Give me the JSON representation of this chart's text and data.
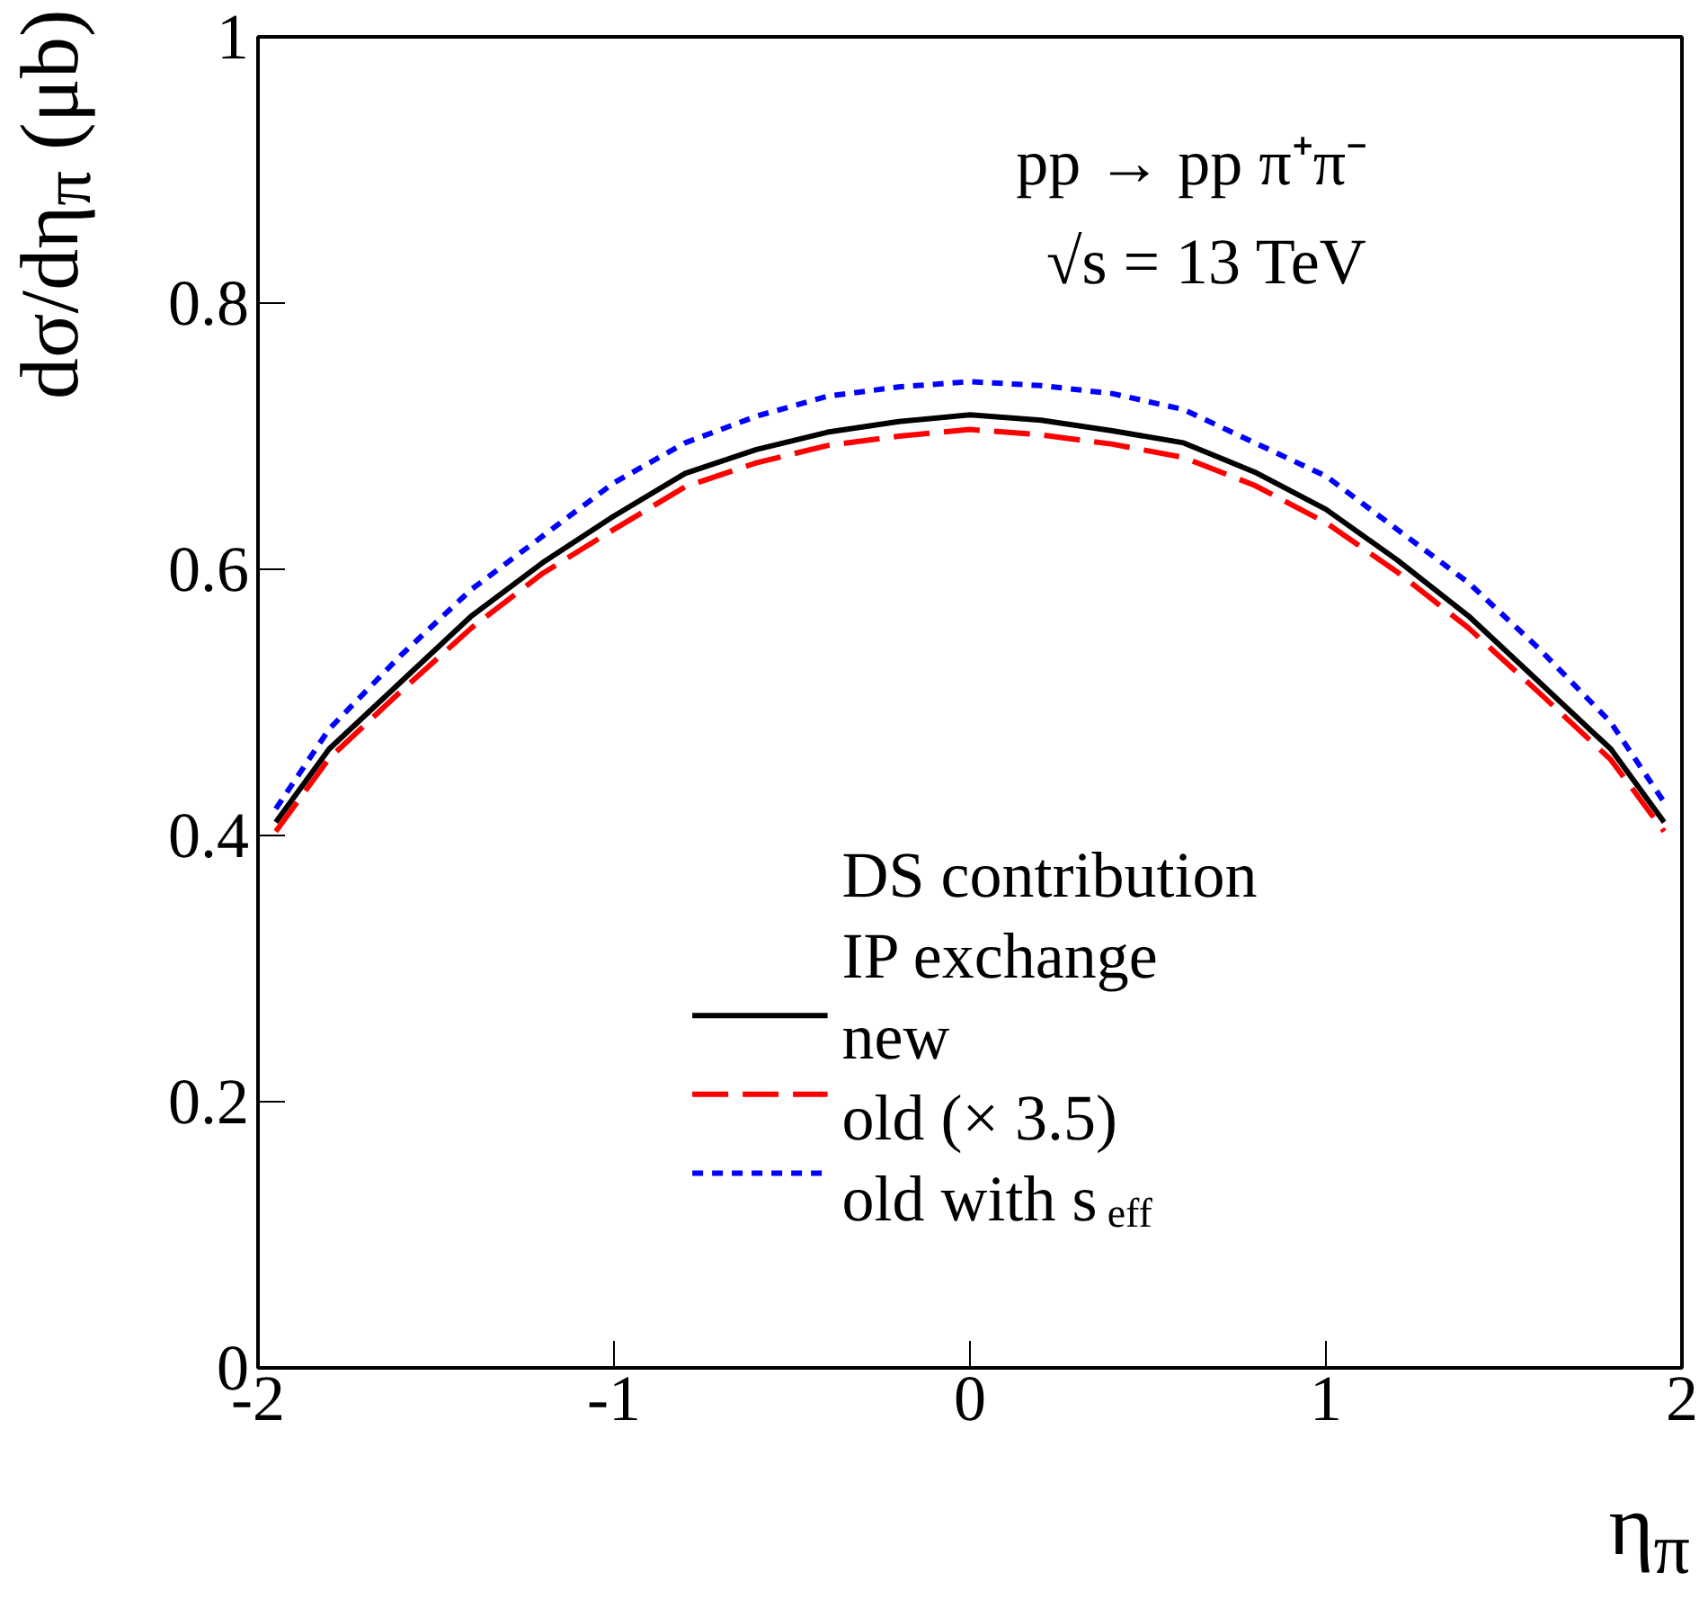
{
  "chart_data": {
    "type": "line",
    "xlabel": "η$_{π}$",
    "ylabel": "dσ/dη$_{π}$ (μb)",
    "legend_title": "DS contribution\nIP exchange",
    "annotations": [
      "pp → pp π⁺π⁻",
      "√s = 13 TeV"
    ],
    "x": [
      -1.95,
      -1.8,
      -1.6,
      -1.4,
      -1.2,
      -1.0,
      -0.8,
      -0.6,
      -0.4,
      -0.2,
      0.0,
      0.2,
      0.4,
      0.6,
      0.8,
      1.0,
      1.2,
      1.4,
      1.6,
      1.8,
      1.95
    ],
    "series": [
      {
        "name": "new",
        "color": "#000000",
        "line_style": "solid",
        "values": [
          0.41,
          0.465,
          0.515,
          0.565,
          0.605,
          0.64,
          0.672,
          0.69,
          0.703,
          0.711,
          0.716,
          0.712,
          0.704,
          0.695,
          0.673,
          0.645,
          0.607,
          0.565,
          0.515,
          0.465,
          0.41
        ]
      },
      {
        "name": "old (× 3.5)",
        "color": "#ff0000",
        "line_style": "dashed",
        "values": [
          0.403,
          0.458,
          0.508,
          0.556,
          0.597,
          0.63,
          0.662,
          0.68,
          0.693,
          0.7,
          0.705,
          0.701,
          0.694,
          0.684,
          0.663,
          0.635,
          0.598,
          0.556,
          0.507,
          0.457,
          0.403
        ]
      },
      {
        "name": "old with s$_{eff}$",
        "color": "#0000ff",
        "line_style": "dotted",
        "values": [
          0.42,
          0.48,
          0.535,
          0.585,
          0.625,
          0.665,
          0.695,
          0.715,
          0.73,
          0.737,
          0.741,
          0.738,
          0.732,
          0.72,
          0.695,
          0.67,
          0.63,
          0.59,
          0.54,
          0.485,
          0.425
        ]
      }
    ],
    "xlim": [
      -2,
      2
    ],
    "ylim": [
      0,
      1
    ],
    "xticks": [
      -2,
      -1,
      0,
      1,
      2
    ],
    "yticks": [
      {
        "value": 0,
        "label": "0"
      },
      0.2,
      0.4,
      0.6,
      0.8,
      {
        "value": 1,
        "label": "1"
      }
    ],
    "grid": false,
    "legend": "bottom right",
    "marker": "none"
  }
}
